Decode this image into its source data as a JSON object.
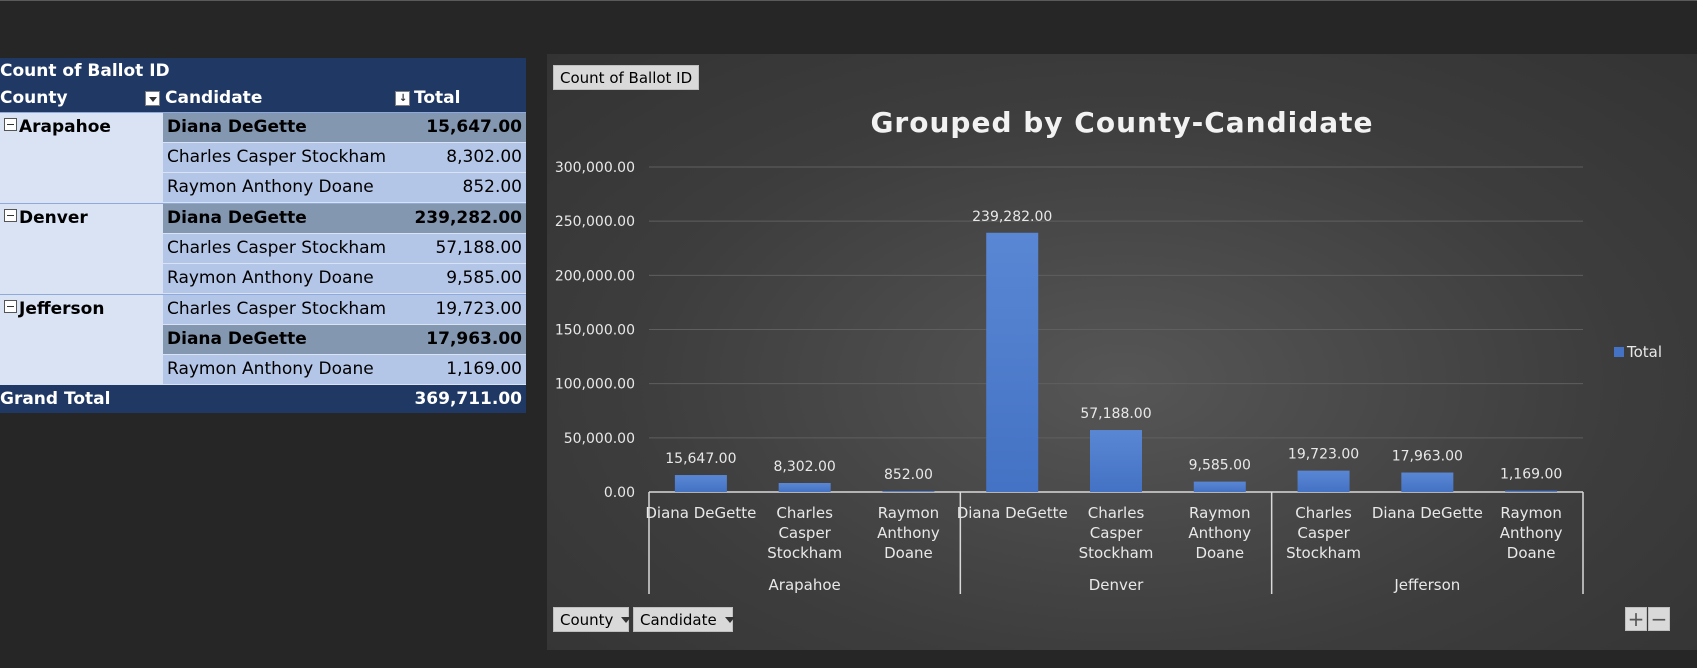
{
  "pivot": {
    "measure_label": "Count of Ballot ID",
    "headers": {
      "county": "County",
      "candidate": "Candidate",
      "total": "Total"
    },
    "groups": [
      {
        "county": "Arapahoe",
        "rows": [
          {
            "candidate": "Diana DeGette",
            "value": "15,647.00",
            "bold": true
          },
          {
            "candidate": "Charles Casper Stockham",
            "value": "8,302.00",
            "bold": false
          },
          {
            "candidate": "Raymon Anthony Doane",
            "value": "852.00",
            "bold": false
          }
        ]
      },
      {
        "county": "Denver",
        "rows": [
          {
            "candidate": "Diana DeGette",
            "value": "239,282.00",
            "bold": true
          },
          {
            "candidate": "Charles Casper Stockham",
            "value": "57,188.00",
            "bold": false
          },
          {
            "candidate": "Raymon Anthony Doane",
            "value": "9,585.00",
            "bold": false
          }
        ]
      },
      {
        "county": "Jefferson",
        "rows": [
          {
            "candidate": "Charles Casper Stockham",
            "value": "19,723.00",
            "bold": false
          },
          {
            "candidate": "Diana DeGette",
            "value": "17,963.00",
            "bold": true
          },
          {
            "candidate": "Raymon Anthony Doane",
            "value": "1,169.00",
            "bold": false
          }
        ]
      }
    ],
    "grand_total_label": "Grand Total",
    "grand_total_value": "369,711.00"
  },
  "chart_ui": {
    "value_button": "Count of Ballot ID",
    "axis_buttons": [
      "County",
      "Candidate"
    ],
    "zoom_in": "+",
    "zoom_out": "−"
  },
  "chart_data": {
    "type": "bar",
    "title": "Grouped by County-Candidate",
    "groups": [
      {
        "name": "Arapahoe",
        "categories": [
          "Diana DeGette",
          "Charles Casper Stockham",
          "Raymon Anthony Doane"
        ],
        "values": [
          15647,
          8302,
          852
        ]
      },
      {
        "name": "Denver",
        "categories": [
          "Diana DeGette",
          "Charles Casper Stockham",
          "Raymon Anthony Doane"
        ],
        "values": [
          239282,
          57188,
          9585
        ]
      },
      {
        "name": "Jefferson",
        "categories": [
          "Charles Casper Stockham",
          "Diana DeGette",
          "Raymon Anthony Doane"
        ],
        "values": [
          19723,
          17963,
          1169
        ]
      }
    ],
    "series": [
      {
        "name": "Total"
      }
    ],
    "data_labels": [
      "15,647.00",
      "8,302.00",
      "852.00",
      "239,282.00",
      "57,188.00",
      "9,585.00",
      "19,723.00",
      "17,963.00",
      "1,169.00"
    ],
    "y_ticks": [
      "0.00",
      "50,000.00",
      "100,000.00",
      "150,000.00",
      "200,000.00",
      "250,000.00",
      "300,000.00"
    ],
    "ylim": [
      0,
      300000
    ],
    "grid": true,
    "legend": "right",
    "bar_color": "#4472c4"
  }
}
